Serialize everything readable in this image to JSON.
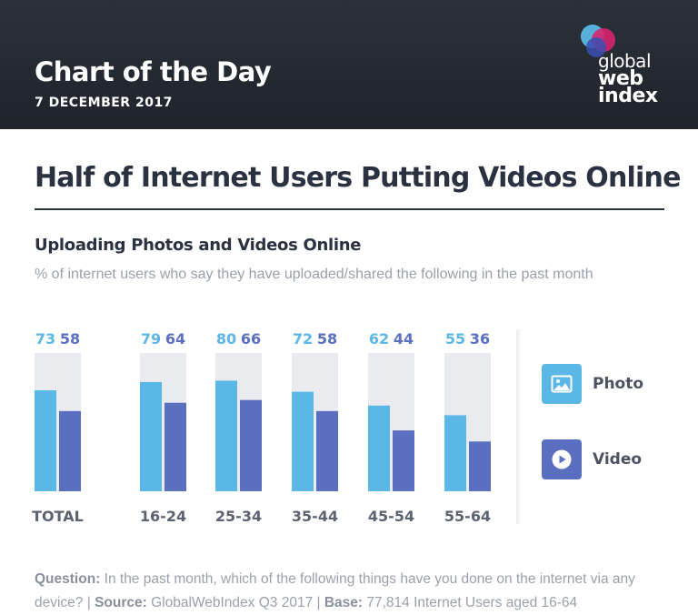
{
  "header": {
    "title": "Chart of the Day",
    "date": "7 DECEMBER 2017",
    "logo": {
      "line1": "global",
      "line2": "web",
      "line3": "index"
    }
  },
  "main": {
    "title": "Half of Internet Users Putting Videos Online",
    "subtitle": "Uploading Photos and Videos Online",
    "description": "% of internet users who say they have uploaded/shared the following in the past month"
  },
  "legend": {
    "photo_label": "Photo",
    "video_label": "Video",
    "photo_icon": "image-icon",
    "video_icon": "play-icon"
  },
  "colors": {
    "photo": "#5bb7e5",
    "video": "#5a6fc0",
    "track": "#e9ebef",
    "axis_text": "#5b6270"
  },
  "chart_data": {
    "type": "bar",
    "categories": [
      "TOTAL",
      "16-24",
      "25-34",
      "35-44",
      "45-54",
      "55-64"
    ],
    "series": [
      {
        "name": "Photo",
        "values": [
          73,
          79,
          80,
          72,
          62,
          55
        ]
      },
      {
        "name": "Video",
        "values": [
          58,
          64,
          66,
          58,
          44,
          36
        ]
      }
    ],
    "ylim": [
      0,
      100
    ],
    "title": "Uploading Photos and Videos Online",
    "xlabel": "",
    "ylabel": "",
    "legend_position": "right"
  },
  "footer": {
    "question_label": "Question:",
    "question_text": " In the past month, which of the following things have you done on the internet via any device? | ",
    "source_label": "Source:",
    "source_text": " GlobalWebIndex Q3 2017 | ",
    "base_label": "Base:",
    "base_text": " 77,814 Internet Users aged 16-64"
  }
}
